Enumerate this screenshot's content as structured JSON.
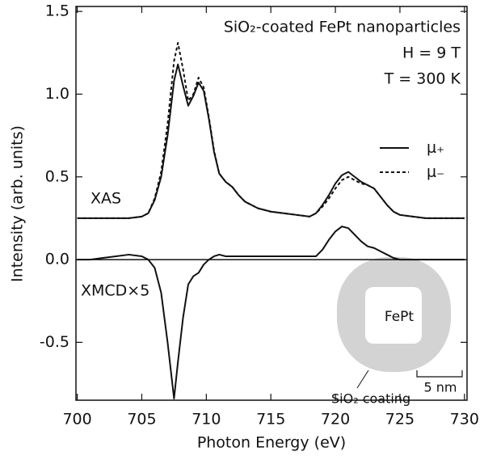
{
  "chart_data": {
    "type": "line",
    "title": "SiO₂-coated FePt nanoparticles",
    "annotations": [
      "H = 9 T",
      "T = 300 K"
    ],
    "curve_labels": [
      "XAS",
      "XMCD×5"
    ],
    "inset_labels": [
      "FePt",
      "SiO₂ coating",
      "5 nm"
    ],
    "x_label": "Photon Energy (eV)",
    "y_label": "Intensity (arb. units)",
    "x": [
      700,
      701,
      702,
      703,
      704,
      705,
      705.5,
      706,
      706.5,
      707,
      707.5,
      707.8,
      708.2,
      708.6,
      709,
      709.4,
      709.8,
      710.2,
      710.6,
      711,
      711.5,
      712,
      712.5,
      713,
      714,
      715,
      716,
      717,
      718,
      718.5,
      719,
      719.5,
      720,
      720.5,
      721,
      721.5,
      722,
      722.5,
      723,
      723.5,
      724,
      724.5,
      725,
      726,
      727,
      728,
      729,
      730
    ],
    "series": [
      {
        "name": "μ₊",
        "color": "#111111",
        "dash": "solid",
        "values": [
          0.25,
          0.25,
          0.25,
          0.25,
          0.25,
          0.26,
          0.28,
          0.36,
          0.5,
          0.75,
          1.08,
          1.18,
          1.05,
          0.93,
          0.99,
          1.07,
          1.02,
          0.85,
          0.65,
          0.52,
          0.47,
          0.44,
          0.39,
          0.35,
          0.31,
          0.29,
          0.28,
          0.27,
          0.26,
          0.28,
          0.33,
          0.39,
          0.46,
          0.51,
          0.53,
          0.5,
          0.47,
          0.45,
          0.43,
          0.38,
          0.33,
          0.29,
          0.27,
          0.26,
          0.25,
          0.25,
          0.25,
          0.25
        ]
      },
      {
        "name": "μ₋",
        "color": "#111111",
        "dash": "dashed",
        "values": [
          0.25,
          0.25,
          0.25,
          0.25,
          0.25,
          0.26,
          0.28,
          0.37,
          0.53,
          0.82,
          1.2,
          1.31,
          1.15,
          0.96,
          1.0,
          1.1,
          1.04,
          0.86,
          0.66,
          0.52,
          0.47,
          0.44,
          0.39,
          0.35,
          0.31,
          0.29,
          0.28,
          0.27,
          0.26,
          0.28,
          0.32,
          0.37,
          0.43,
          0.48,
          0.5,
          0.48,
          0.46,
          0.45,
          0.43,
          0.38,
          0.33,
          0.29,
          0.27,
          0.26,
          0.25,
          0.25,
          0.25,
          0.25
        ]
      },
      {
        "color": "#111111",
        "dash": "solid",
        "values": [
          0,
          0,
          0.01,
          0.02,
          0.03,
          0.02,
          0.0,
          -0.05,
          -0.2,
          -0.5,
          -0.84,
          -0.62,
          -0.35,
          -0.15,
          -0.1,
          -0.08,
          -0.03,
          0.0,
          0.02,
          0.03,
          0.02,
          0.02,
          0.02,
          0.02,
          0.02,
          0.02,
          0.02,
          0.02,
          0.02,
          0.02,
          0.06,
          0.12,
          0.17,
          0.2,
          0.19,
          0.15,
          0.11,
          0.08,
          0.07,
          0.05,
          0.03,
          0.01,
          0.0,
          0,
          0,
          0,
          0,
          0
        ]
      }
    ],
    "hline": 0,
    "xlim": [
      699.9,
      730.2
    ],
    "xticks": [
      700,
      705,
      710,
      715,
      720,
      725,
      730
    ],
    "ylim": [
      -0.85,
      1.53
    ],
    "yticks": [
      -0.5,
      {
        "value": 0,
        "label": "0.0"
      },
      0.5,
      {
        "value": 1,
        "label": "1.0"
      },
      1.5
    ],
    "grid": false
  }
}
